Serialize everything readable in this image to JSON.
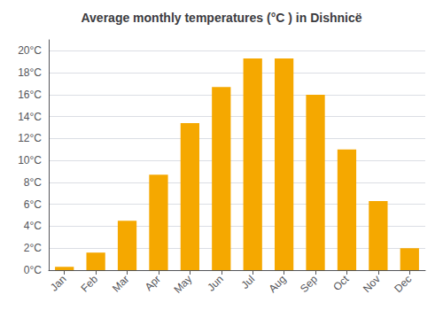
{
  "chart_data": {
    "type": "bar",
    "title": "Average monthly temperatures (°C ) in Dishnicë",
    "categories": [
      "Jan",
      "Feb",
      "Mar",
      "Apr",
      "May",
      "Jun",
      "Jul",
      "Aug",
      "Sep",
      "Oct",
      "Nov",
      "Dec"
    ],
    "values": [
      0.3,
      1.6,
      4.5,
      8.7,
      13.4,
      16.7,
      19.3,
      19.3,
      16.0,
      11.0,
      6.3,
      2.0
    ],
    "color": "#F5A800",
    "ylim": [
      0,
      21
    ],
    "yticks": [
      {
        "value": 0,
        "label": "0°C"
      },
      {
        "value": 2,
        "label": "2°C"
      },
      {
        "value": 4,
        "label": "4°C"
      },
      {
        "value": 6,
        "label": "6°C"
      },
      {
        "value": 8,
        "label": "8°C"
      },
      {
        "value": 10,
        "label": "10°C"
      },
      {
        "value": 12,
        "label": "12°C"
      },
      {
        "value": 14,
        "label": "14°C"
      },
      {
        "value": 16,
        "label": "16°C"
      },
      {
        "value": 18,
        "label": "18°C"
      },
      {
        "value": 20,
        "label": "20°C"
      }
    ],
    "grid": true
  }
}
